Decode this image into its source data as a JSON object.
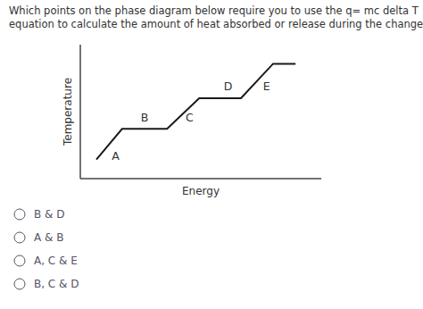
{
  "chart_data": {
    "type": "line",
    "title": "Which points on the phase diagram below require you to use the q= mc delta T",
    "subtitle": "equation to calculate the amount of heat absorbed or release during the change?",
    "x_label": "Energy",
    "y_label": "Temperature",
    "x": [
      1.0,
      1.8,
      3.2,
      4.2,
      5.5,
      6.5,
      7.2
    ],
    "values": [
      1.0,
      2.6,
      2.6,
      4.2,
      4.2,
      6.0,
      6.0
    ],
    "color": "#1a1a1a",
    "xlim": [
      0.5,
      8.0
    ],
    "ylim": [
      0.0,
      7.0
    ],
    "xticks": [],
    "yticks": [],
    "tick_labels": false,
    "annotations": [
      {
        "text": "A",
        "x": 1.6,
        "y": 0.9
      },
      {
        "text": "B",
        "x": 2.5,
        "y": 2.9
      },
      {
        "text": "C",
        "x": 3.9,
        "y": 2.9
      },
      {
        "text": "D",
        "x": 5.1,
        "y": 4.55
      },
      {
        "text": "E",
        "x": 6.3,
        "y": 4.55
      }
    ],
    "choices": [
      "B & D",
      "A & B",
      "A, C & E",
      "B, C & D"
    ]
  }
}
